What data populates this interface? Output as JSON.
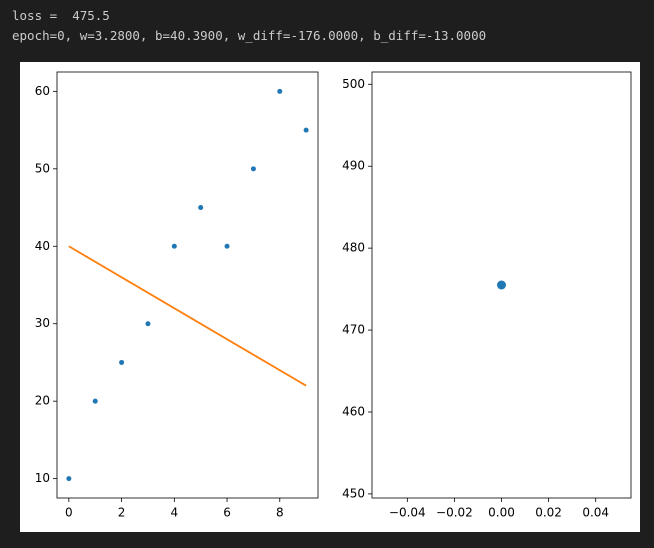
{
  "output_lines": [
    "loss =  475.5",
    "epoch=0, w=3.2800, b=40.3900, w_diff=-176.0000, b_diff=-13.0000"
  ],
  "chart_data": [
    {
      "type": "scatter",
      "series": [
        {
          "type": "scatter",
          "x": [
            0,
            1,
            2,
            3,
            4,
            5,
            6,
            7,
            8,
            9
          ],
          "y": [
            10,
            20,
            25,
            30,
            40,
            45,
            40,
            50,
            60,
            55
          ],
          "color": "#1f77b4",
          "marker_size": 2.5
        },
        {
          "type": "line",
          "x": [
            0,
            9
          ],
          "y": [
            40,
            22
          ],
          "color": "#ff7f0e"
        }
      ],
      "xlim": [
        -0.45,
        9.45
      ],
      "xticks": [
        0,
        2,
        4,
        6,
        8
      ],
      "ylim": [
        7.5,
        62.5
      ],
      "yticks": [
        10,
        20,
        30,
        40,
        50,
        60
      ]
    },
    {
      "type": "scatter",
      "series": [
        {
          "type": "scatter",
          "x": [
            0
          ],
          "y": [
            475.5
          ],
          "color": "#1f77b4",
          "marker_size": 4.5
        }
      ],
      "xlim": [
        -0.055,
        0.055
      ],
      "xticks": [
        {
          "value": -0.04,
          "label": "−0.04"
        },
        {
          "value": -0.02,
          "label": "−0.02"
        },
        {
          "value": 0,
          "label": "0.00"
        },
        {
          "value": 0.02,
          "label": "0.02"
        },
        {
          "value": 0.04,
          "label": "0.04"
        }
      ],
      "ylim": [
        449.5,
        501.5
      ],
      "yticks": [
        450,
        460,
        470,
        480,
        490,
        500
      ]
    }
  ]
}
